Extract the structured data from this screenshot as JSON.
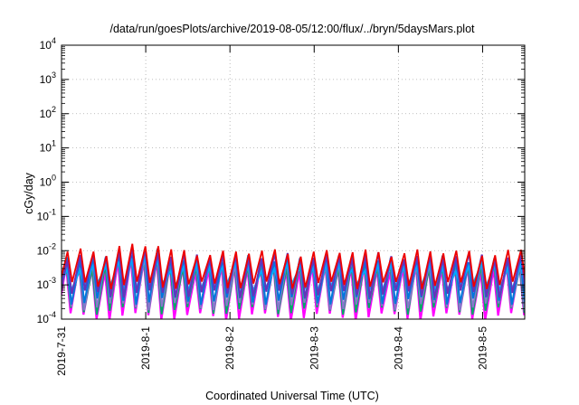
{
  "chart_data": {
    "type": "line",
    "title": "/data/run/goesPlots/archive/2019-08-05/12:00/flux/../bryn/5daysMars.plot",
    "xlabel": "Coordinated Universal Time (UTC)",
    "ylabel": "cGy/day",
    "y_scale": "log",
    "ylim": [
      0.0001,
      10000
    ],
    "xlim": [
      "2019-07-31T00:00",
      "2019-08-05T12:00"
    ],
    "grid": true,
    "legend": "none",
    "x_ticks": [
      "2019-7-31",
      "2019-8-1",
      "2019-8-2",
      "2019-8-3",
      "2019-8-4",
      "2019-8-5"
    ],
    "y_ticks": [
      {
        "base": "10",
        "exp": "-4",
        "value": 0.0001
      },
      {
        "base": "10",
        "exp": "-3",
        "value": 0.001
      },
      {
        "base": "10",
        "exp": "-2",
        "value": 0.01
      },
      {
        "base": "10",
        "exp": "-1",
        "value": 0.1
      },
      {
        "base": "10",
        "exp": "0",
        "value": 1
      },
      {
        "base": "10",
        "exp": "1",
        "value": 10
      },
      {
        "base": "10",
        "exp": "2",
        "value": 100
      },
      {
        "base": "10",
        "exp": "3",
        "value": 1000
      },
      {
        "base": "10",
        "exp": "4",
        "value": 10000
      }
    ],
    "sawtooth": {
      "cycles_per_day": 6.5,
      "peak_time_fraction": 0.65,
      "boost_window": [
        "2019-07-31T13:00",
        "2019-08-01T06:00"
      ],
      "boost_factor": 1.6
    },
    "series": [
      {
        "color": "#ff00ff",
        "peak": 0.0032,
        "trough": 0.00012,
        "width": 2.2
      },
      {
        "color": "#00aa66",
        "peak": 0.004,
        "trough": 0.00018,
        "width": 2.0
      },
      {
        "color": "#8877cc",
        "peak": 0.005,
        "trough": 0.00024,
        "width": 2.0
      },
      {
        "color": "#0077dd",
        "peak": 0.0058,
        "trough": 0.00035,
        "width": 2.0
      },
      {
        "color": "#00aaff",
        "peak": 0.0034,
        "trough": 0.0009,
        "width": 2.0
      },
      {
        "color": "#6633bb",
        "peak": 0.007,
        "trough": 0.00055,
        "width": 2.0
      },
      {
        "color": "#ee0000",
        "peak": 0.009,
        "trough": 0.001,
        "width": 1.8
      }
    ]
  }
}
